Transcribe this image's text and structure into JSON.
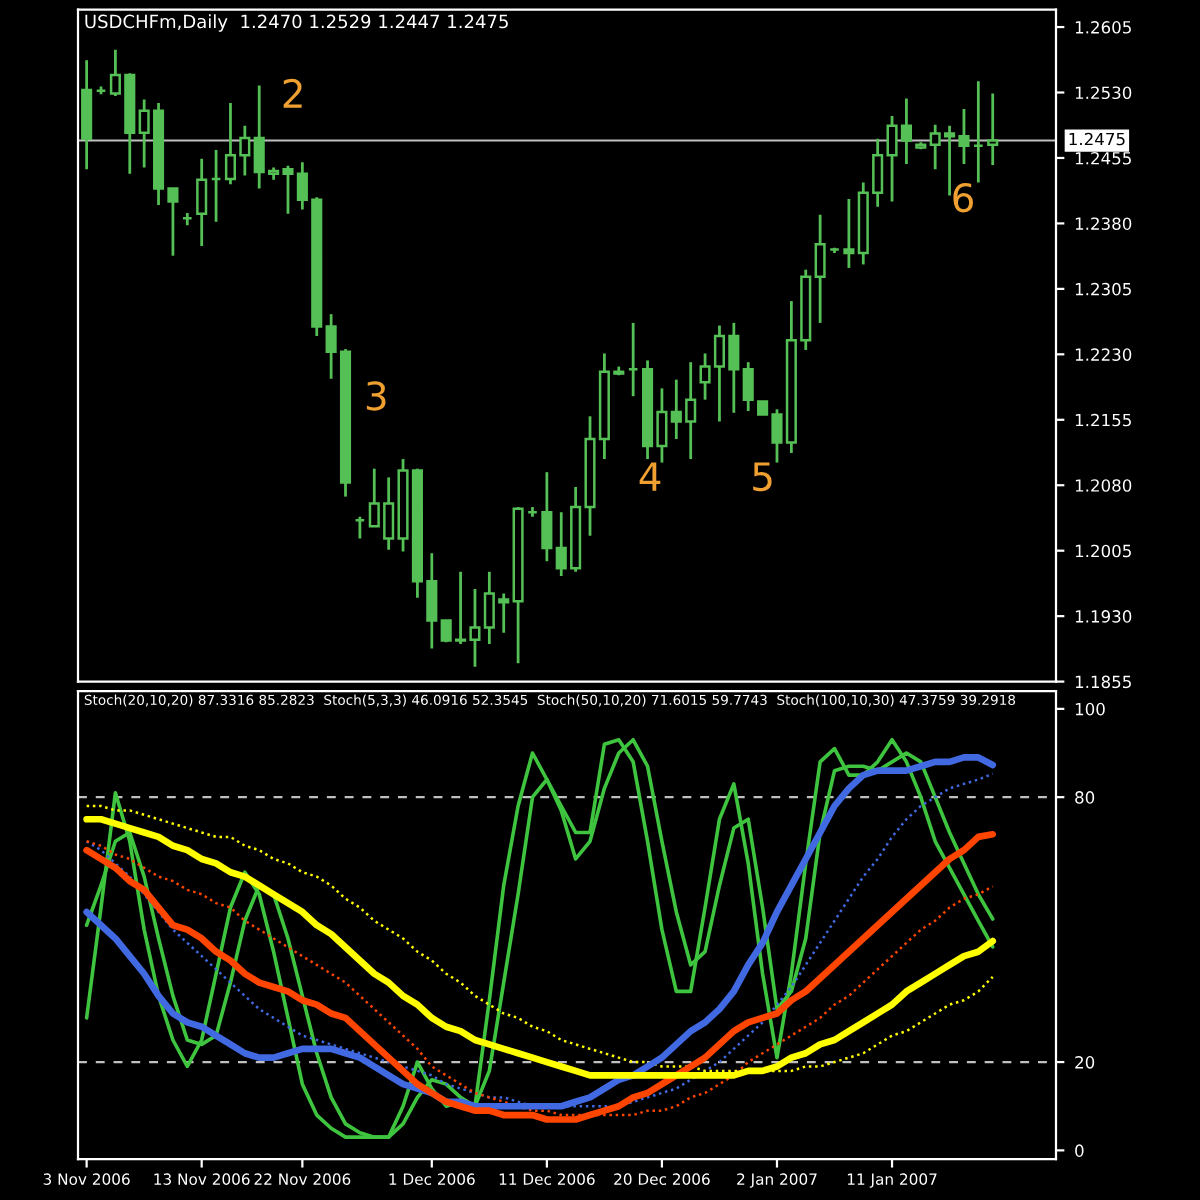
{
  "chart_data": [
    {
      "type": "candlestick",
      "title": "USDCHFm,Daily  1.2470 1.2529 1.2447 1.2475",
      "color": "#55c055",
      "categories": [
        null,
        null,
        null,
        null,
        null,
        null,
        null,
        null,
        null,
        null,
        null,
        null,
        null,
        null,
        null,
        null,
        null,
        null,
        null,
        null,
        null,
        null,
        null,
        null,
        null,
        null,
        null,
        null,
        null,
        null,
        null,
        null,
        null,
        null,
        null,
        null,
        null,
        null,
        null,
        null,
        null,
        null,
        null,
        null,
        null,
        null,
        null,
        null,
        null,
        null,
        null,
        null,
        null,
        null,
        null,
        null,
        null,
        null,
        null,
        null,
        null,
        null,
        null,
        null
      ],
      "ohlc": [
        [
          1.2533,
          1.2567,
          1.2442,
          1.2477
        ],
        [
          1.2532,
          1.2537,
          1.2528,
          1.2532
        ],
        [
          1.2529,
          1.2579,
          1.2526,
          1.255
        ],
        [
          1.255,
          1.2552,
          1.2437,
          1.2484
        ],
        [
          1.2484,
          1.2522,
          1.2444,
          1.2509
        ],
        [
          1.2509,
          1.2518,
          1.2401,
          1.242
        ],
        [
          1.242,
          1.242,
          1.2343,
          1.2405
        ],
        [
          1.2386,
          1.2392,
          1.2378,
          1.2386
        ],
        [
          1.2391,
          1.2454,
          1.2354,
          1.243
        ],
        [
          1.2431,
          1.2464,
          1.2382,
          1.2431
        ],
        [
          1.2431,
          1.2518,
          1.2425,
          1.2458
        ],
        [
          1.2458,
          1.2492,
          1.2435,
          1.2478
        ],
        [
          1.2478,
          1.2538,
          1.242,
          1.2439
        ],
        [
          1.2437,
          1.2444,
          1.243,
          1.244
        ],
        [
          1.2442,
          1.2446,
          1.2391,
          1.2437
        ],
        [
          1.2437,
          1.245,
          1.2396,
          1.2407
        ],
        [
          1.2407,
          1.241,
          1.2251,
          1.2262
        ],
        [
          1.2262,
          1.2276,
          1.2202,
          1.2233
        ],
        [
          1.2233,
          1.2236,
          1.2067,
          1.2083
        ],
        [
          1.204,
          1.2044,
          1.2019,
          1.204
        ],
        [
          1.2033,
          1.2099,
          1.2033,
          1.2059
        ],
        [
          1.2019,
          1.2089,
          1.2006,
          1.2059
        ],
        [
          1.2019,
          1.211,
          1.2004,
          1.2097
        ],
        [
          1.2097,
          1.2099,
          1.1951,
          1.197
        ],
        [
          1.197,
          1.2002,
          1.1893,
          1.1925
        ],
        [
          1.1925,
          1.1925,
          1.19,
          1.1902
        ],
        [
          1.1902,
          1.1981,
          1.1898,
          1.1903
        ],
        [
          1.1903,
          1.1961,
          1.1872,
          1.1917
        ],
        [
          1.1917,
          1.1981,
          1.1898,
          1.1956
        ],
        [
          1.1949,
          1.1956,
          1.1911,
          1.1946
        ],
        [
          1.1947,
          1.2055,
          1.1876,
          1.2053
        ],
        [
          1.2049,
          1.2055,
          1.2044,
          1.2049
        ],
        [
          1.2049,
          1.2095,
          1.1993,
          1.2008
        ],
        [
          1.2008,
          1.2049,
          1.1976,
          1.1985
        ],
        [
          1.1985,
          1.2078,
          1.1981,
          1.2055
        ],
        [
          1.2055,
          1.2159,
          1.2022,
          1.2133
        ],
        [
          1.2133,
          1.2231,
          1.211,
          1.221
        ],
        [
          1.221,
          1.2216,
          1.2206,
          1.2208
        ],
        [
          1.2213,
          1.2266,
          1.2182,
          1.2213
        ],
        [
          1.2213,
          1.2223,
          1.211,
          1.2125
        ],
        [
          1.2125,
          1.2191,
          1.2106,
          1.2164
        ],
        [
          1.2164,
          1.2201,
          1.2133,
          1.2153
        ],
        [
          1.2153,
          1.2221,
          1.211,
          1.2178
        ],
        [
          1.2198,
          1.2231,
          1.2178,
          1.2216
        ],
        [
          1.2216,
          1.2263,
          1.2153,
          1.2251
        ],
        [
          1.2251,
          1.2266,
          1.2163,
          1.2213
        ],
        [
          1.2213,
          1.2221,
          1.2165,
          1.2178
        ],
        [
          1.2176,
          1.2176,
          1.2161,
          1.2161
        ],
        [
          1.2161,
          1.2167,
          1.2106,
          1.2129
        ],
        [
          1.2129,
          1.2291,
          1.2117,
          1.2246
        ],
        [
          1.2246,
          1.2327,
          1.2235,
          1.2319
        ],
        [
          1.2319,
          1.239,
          1.2266,
          1.2356
        ],
        [
          1.235,
          1.2352,
          1.2346,
          1.235
        ],
        [
          1.235,
          1.2408,
          1.2329,
          1.2346
        ],
        [
          1.2346,
          1.2427,
          1.2333,
          1.2415
        ],
        [
          1.2415,
          1.2477,
          1.2399,
          1.2458
        ],
        [
          1.2458,
          1.2503,
          1.2405,
          1.2492
        ],
        [
          1.2492,
          1.2523,
          1.2448,
          1.2475
        ],
        [
          1.2467,
          1.2473,
          1.2465,
          1.247
        ],
        [
          1.247,
          1.2493,
          1.2442,
          1.2483
        ],
        [
          1.2483,
          1.2492,
          1.2412,
          1.248
        ],
        [
          1.248,
          1.2511,
          1.2448,
          1.2469
        ],
        [
          1.2469,
          1.2543,
          1.2427,
          1.2469
        ],
        [
          1.247,
          1.2529,
          1.2447,
          1.2475
        ]
      ],
      "ylim": [
        1.1855,
        1.2625
      ],
      "yticks": [
        {
          "value": 1.1855,
          "label": "1.1855"
        },
        {
          "value": 1.193,
          "label": "1.1930"
        },
        {
          "value": 1.2005,
          "label": "1.2005"
        },
        {
          "value": 1.208,
          "label": "1.2080"
        },
        {
          "value": 1.2155,
          "label": "1.2155"
        },
        {
          "value": 1.223,
          "label": "1.2230"
        },
        {
          "value": 1.2305,
          "label": "1.2305"
        },
        {
          "value": 1.238,
          "label": "1.2380"
        },
        {
          "value": 1.2455,
          "label": "1.2455"
        },
        {
          "value": 1.253,
          "label": "1.2530"
        },
        {
          "value": 1.2605,
          "label": "1.2605"
        }
      ],
      "ref_lines": [
        {
          "axis": "y",
          "value": 1.2475,
          "label": "1.2475",
          "color": "#c0c0c0",
          "line_style": "solid"
        }
      ],
      "annotations": [
        "2",
        "3",
        "4",
        "5",
        "6"
      ],
      "tick_labels": "y"
    },
    {
      "type": "line",
      "title": "Stoch(20,10,20) 87.3316 85.2823  Stoch(5,3,3) 46.0916 52.3545  Stoch(50,10,20) 71.6015 59.7743  Stoch(100,10,30) 47.3759 39.2918",
      "categories": [
        "3 Nov 2006",
        null,
        null,
        null,
        null,
        null,
        null,
        null,
        "13 Nov 2006",
        null,
        null,
        null,
        null,
        null,
        null,
        "22 Nov 2006",
        null,
        null,
        null,
        null,
        null,
        null,
        null,
        null,
        "1 Dec 2006",
        null,
        null,
        null,
        null,
        null,
        null,
        null,
        "11 Dec 2006",
        null,
        null,
        null,
        null,
        null,
        null,
        null,
        "20 Dec 2006",
        null,
        null,
        null,
        null,
        null,
        null,
        null,
        "2 Jan 2007",
        null,
        null,
        null,
        null,
        null,
        null,
        null,
        "11 Jan 2007",
        null,
        null,
        null,
        null,
        null,
        null,
        null
      ],
      "series": [
        {
          "color": "#3ec43e",
          "line_style": "solid",
          "values": [
            51,
            60,
            70,
            72,
            62,
            48,
            35,
            25,
            24,
            26,
            38,
            52,
            60,
            58,
            48,
            35,
            22,
            12,
            6,
            4,
            3,
            3,
            6,
            12,
            16,
            15,
            12,
            10,
            18,
            38,
            58,
            80,
            84,
            77,
            66,
            70,
            82,
            90,
            93,
            87,
            70,
            54,
            42,
            45,
            60,
            73,
            75,
            55,
            32,
            36,
            48,
            72,
            86,
            87,
            87,
            86,
            88,
            90,
            88,
            80,
            72,
            65,
            58,
            52.4
          ]
        },
        {
          "color": "#3ec43e",
          "line_style": "solid",
          "values": [
            30,
            55,
            81,
            70,
            50,
            35,
            25,
            19,
            25,
            40,
            55,
            63,
            58,
            45,
            30,
            15,
            8,
            5,
            3,
            3,
            3,
            3,
            10,
            20,
            14,
            10,
            11,
            10,
            34,
            60,
            78,
            90,
            84,
            78,
            72,
            72,
            92,
            93,
            88,
            70,
            50,
            36,
            36,
            55,
            75,
            83,
            65,
            40,
            21,
            40,
            65,
            88,
            91,
            85,
            85,
            88,
            93,
            88,
            80,
            70,
            64,
            58,
            52,
            46.1
          ]
        },
        {
          "color": "#4169e1",
          "line_style": "dotted",
          "values": [
            70,
            68,
            65,
            62,
            58,
            54,
            50,
            47,
            44,
            41,
            38,
            35,
            32,
            30,
            28,
            26,
            25,
            24,
            23,
            22,
            21,
            20,
            19,
            18,
            17,
            15,
            14,
            13,
            12,
            12,
            11,
            10,
            10,
            10,
            10,
            10,
            10,
            10,
            11,
            12,
            13,
            14,
            16,
            18,
            20,
            23,
            26,
            29,
            33,
            37,
            42,
            47,
            52,
            57,
            62,
            66,
            71,
            75,
            78,
            80,
            82,
            83,
            84,
            85.3
          ]
        },
        {
          "color": "#ff4500",
          "line_style": "dotted",
          "values": [
            70,
            69,
            67,
            66,
            64,
            62,
            61,
            59,
            58,
            56,
            55,
            52,
            50,
            48,
            46,
            44,
            42,
            40,
            38,
            35,
            32,
            29,
            26,
            23,
            19,
            17,
            15,
            13,
            12,
            11,
            10,
            9,
            9,
            8,
            8,
            8,
            8,
            8,
            8,
            9,
            9,
            10,
            12,
            13,
            15,
            17,
            20,
            22,
            24,
            26,
            28,
            30,
            33,
            35,
            38,
            41,
            44,
            47,
            50,
            52,
            55,
            57,
            58,
            59.8
          ]
        },
        {
          "color": "#ffff00",
          "line_style": "dotted",
          "values": [
            78,
            78,
            77,
            77,
            76,
            75,
            74,
            73,
            72,
            71,
            71,
            69,
            68,
            66,
            65,
            63,
            62,
            60,
            57,
            55,
            52,
            50,
            48,
            45,
            43,
            40,
            38,
            35,
            33,
            31,
            30,
            28,
            27,
            25,
            24,
            23,
            22,
            21,
            20,
            20,
            19,
            19,
            19,
            18,
            18,
            18,
            18,
            18,
            18,
            18,
            19,
            19,
            20,
            21,
            22,
            24,
            26,
            27,
            29,
            31,
            33,
            34,
            36,
            39.3
          ]
        },
        {
          "color": "#4169e1",
          "line_style": "solid",
          "values": [
            54,
            51,
            48,
            44,
            40,
            35,
            31,
            29,
            28,
            26,
            24,
            22,
            21,
            21,
            22,
            23,
            23,
            23,
            22,
            21,
            19,
            17,
            15,
            14,
            13,
            11,
            11,
            10,
            10,
            10,
            10,
            10,
            10,
            10,
            11,
            12,
            14,
            16,
            17,
            19,
            21,
            24,
            27,
            29,
            32,
            36,
            42,
            47,
            54,
            60,
            66,
            72,
            78,
            82,
            85,
            86,
            86,
            86,
            87,
            88,
            88,
            89,
            89,
            87.3
          ]
        },
        {
          "color": "#ff4500",
          "line_style": "solid",
          "values": [
            68,
            66,
            64,
            61,
            59,
            55,
            51,
            50,
            48,
            45,
            43,
            40,
            38,
            37,
            36,
            34,
            33,
            31,
            30,
            27,
            24,
            21,
            18,
            15,
            13,
            11,
            10,
            9,
            9,
            8,
            8,
            8,
            7,
            7,
            7,
            8,
            9,
            10,
            12,
            13,
            15,
            17,
            19,
            21,
            24,
            27,
            29,
            30,
            31,
            34,
            36,
            39,
            42,
            45,
            48,
            51,
            54,
            57,
            60,
            63,
            66,
            68,
            71,
            71.6
          ]
        },
        {
          "color": "#ffff00",
          "line_style": "solid",
          "values": [
            75,
            75,
            74,
            73,
            72,
            71,
            69,
            68,
            66,
            65,
            63,
            62,
            60,
            58,
            56,
            54,
            51,
            49,
            46,
            43,
            40,
            38,
            35,
            33,
            30,
            28,
            27,
            25,
            24,
            23,
            22,
            21,
            20,
            19,
            18,
            17,
            17,
            17,
            17,
            17,
            17,
            17,
            17,
            17,
            17,
            17,
            18,
            18,
            19,
            21,
            22,
            24,
            25,
            27,
            29,
            31,
            33,
            36,
            38,
            40,
            42,
            44,
            45,
            47.4
          ]
        }
      ],
      "ylim": [
        -2,
        104
      ],
      "yticks": [
        0,
        20,
        80,
        100
      ],
      "ref_lines": [
        {
          "axis": "y",
          "value": 20,
          "color": "#c0c0c0",
          "line_style": "dashed"
        },
        {
          "axis": "y",
          "value": 80,
          "color": "#c0c0c0",
          "line_style": "dashed"
        }
      ]
    }
  ]
}
